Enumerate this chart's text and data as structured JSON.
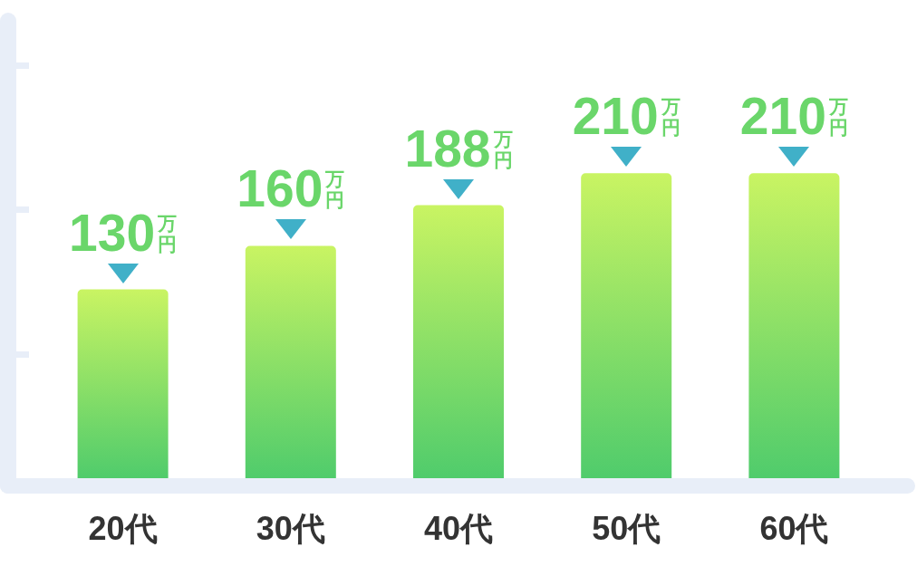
{
  "chart_data": {
    "type": "bar",
    "categories": [
      "20代",
      "30代",
      "40代",
      "50代",
      "60代"
    ],
    "values": [
      130,
      160,
      188,
      210,
      210
    ],
    "color": "#8cdc66",
    "value_labels": [
      "130万円",
      "160万円",
      "188万円",
      "210万円",
      "210万円"
    ],
    "tick_labels": "x"
  }
}
